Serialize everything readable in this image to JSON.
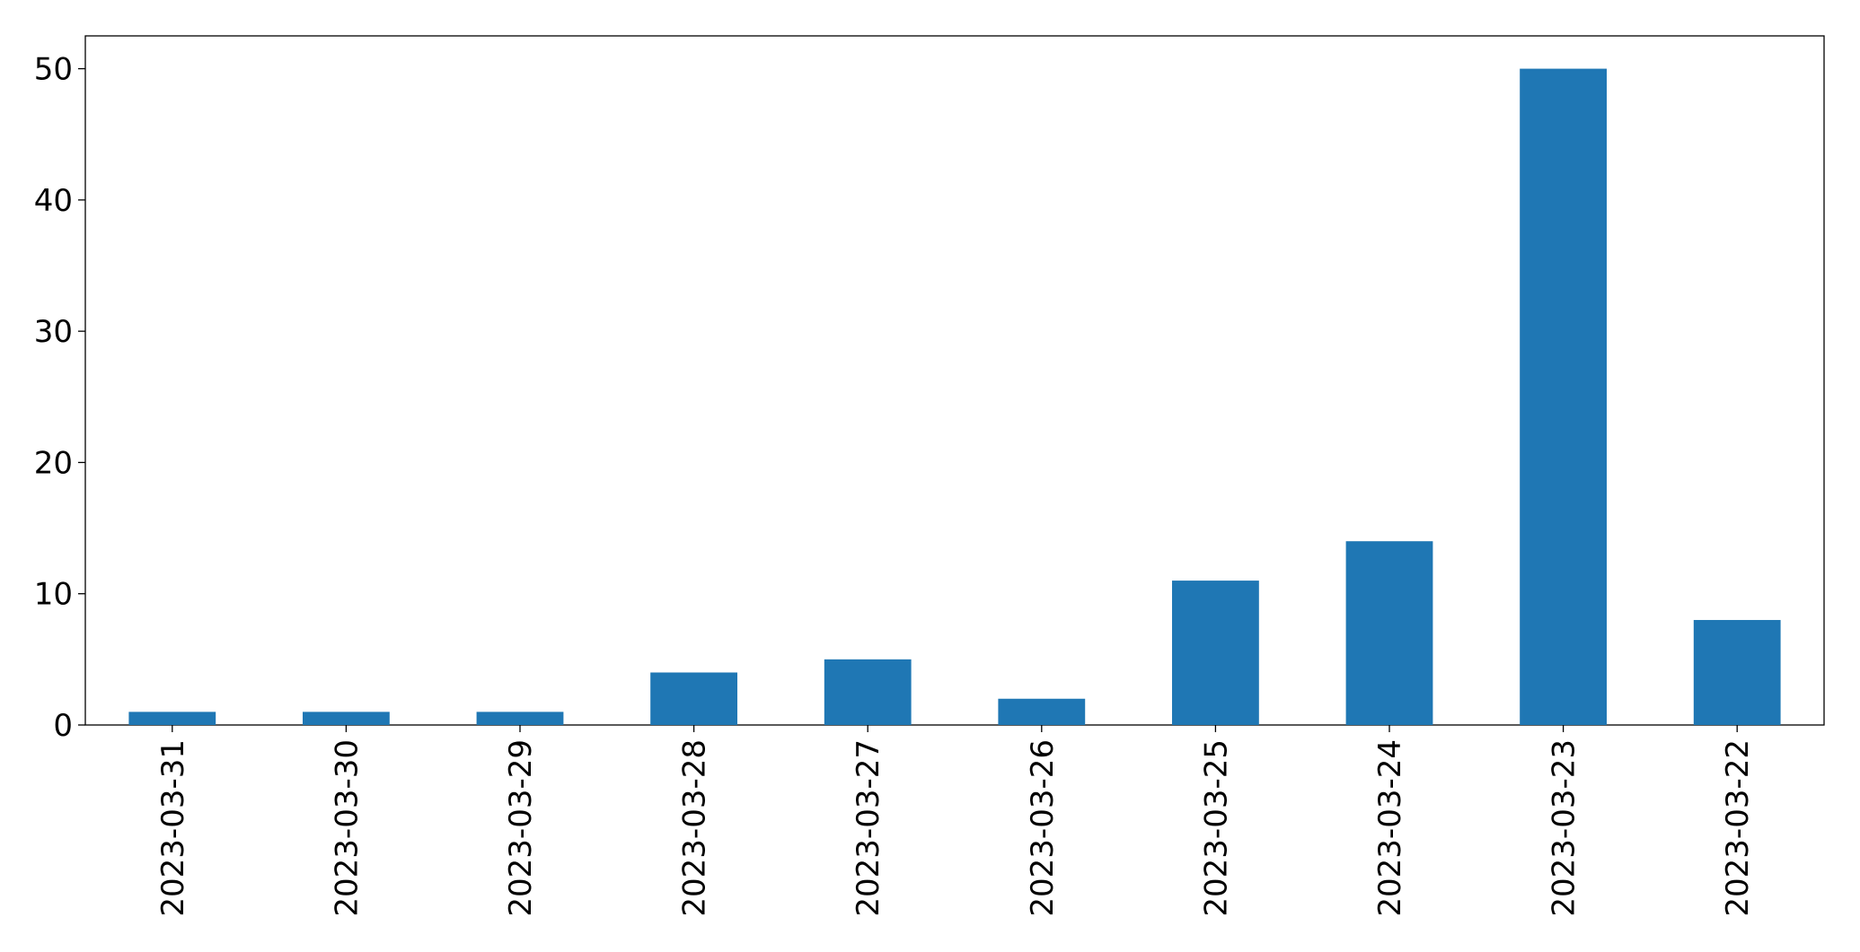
{
  "chart_data": {
    "type": "bar",
    "categories": [
      "2023-03-31",
      "2023-03-30",
      "2023-03-29",
      "2023-03-28",
      "2023-03-27",
      "2023-03-26",
      "2023-03-25",
      "2023-03-24",
      "2023-03-23",
      "2023-03-22"
    ],
    "values": [
      1,
      1,
      1,
      4,
      5,
      2,
      11,
      14,
      50,
      8
    ],
    "color": "#1f77b4",
    "ylim": [
      0,
      52.5
    ],
    "yticks": [
      0,
      10,
      20,
      30,
      40,
      50
    ],
    "grid": false
  }
}
